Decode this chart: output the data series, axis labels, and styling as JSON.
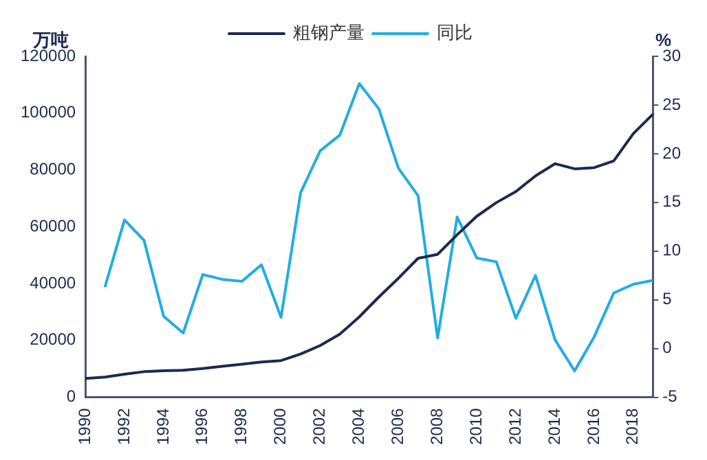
{
  "chart_data": {
    "type": "line",
    "ylabel": "万吨",
    "y2label": "%",
    "categories": [
      "1990",
      null,
      "1992",
      null,
      "1994",
      null,
      "1996",
      null,
      "1998",
      null,
      "2000",
      null,
      "2002",
      null,
      "2004",
      null,
      "2006",
      null,
      "2008",
      null,
      "2010",
      null,
      "2012",
      null,
      "2014",
      null,
      "2016",
      null,
      "2018",
      null
    ],
    "series": [
      {
        "name": "粗钢产量",
        "color": "#1b2a4e",
        "values": [
          6600,
          7100,
          8100,
          9000,
          9300,
          9500,
          10100,
          10900,
          11600,
          12400,
          12900,
          15200,
          18200,
          22200,
          28300,
          35300,
          41900,
          48900,
          50300,
          57200,
          63700,
          68500,
          72400,
          77900,
          82200,
          80400,
          80800,
          83200,
          92800,
          99600
        ]
      },
      {
        "name": "同比",
        "color": "#22ade0",
        "axis": "y2",
        "values": [
          null,
          6.3,
          13.2,
          11.1,
          3.3,
          1.6,
          7.6,
          7.1,
          6.9,
          8.6,
          3.2,
          16,
          20.3,
          21.9,
          27.2,
          24.6,
          18.5,
          15.7,
          1.1,
          13.5,
          9.3,
          8.9,
          3.1,
          7.5,
          0.9,
          -2.3,
          1.2,
          5.7,
          6.6,
          7.0
        ]
      }
    ],
    "ylim": [
      0,
      120000
    ],
    "yticks": [
      0,
      20000,
      40000,
      60000,
      80000,
      100000,
      120000
    ],
    "y2lim": [
      -5,
      30
    ],
    "y2ticks": [
      -5,
      0,
      5,
      10,
      15,
      20,
      25,
      30
    ],
    "grid": false,
    "legend": "top",
    "marker": "none",
    "line_style": "solid"
  }
}
